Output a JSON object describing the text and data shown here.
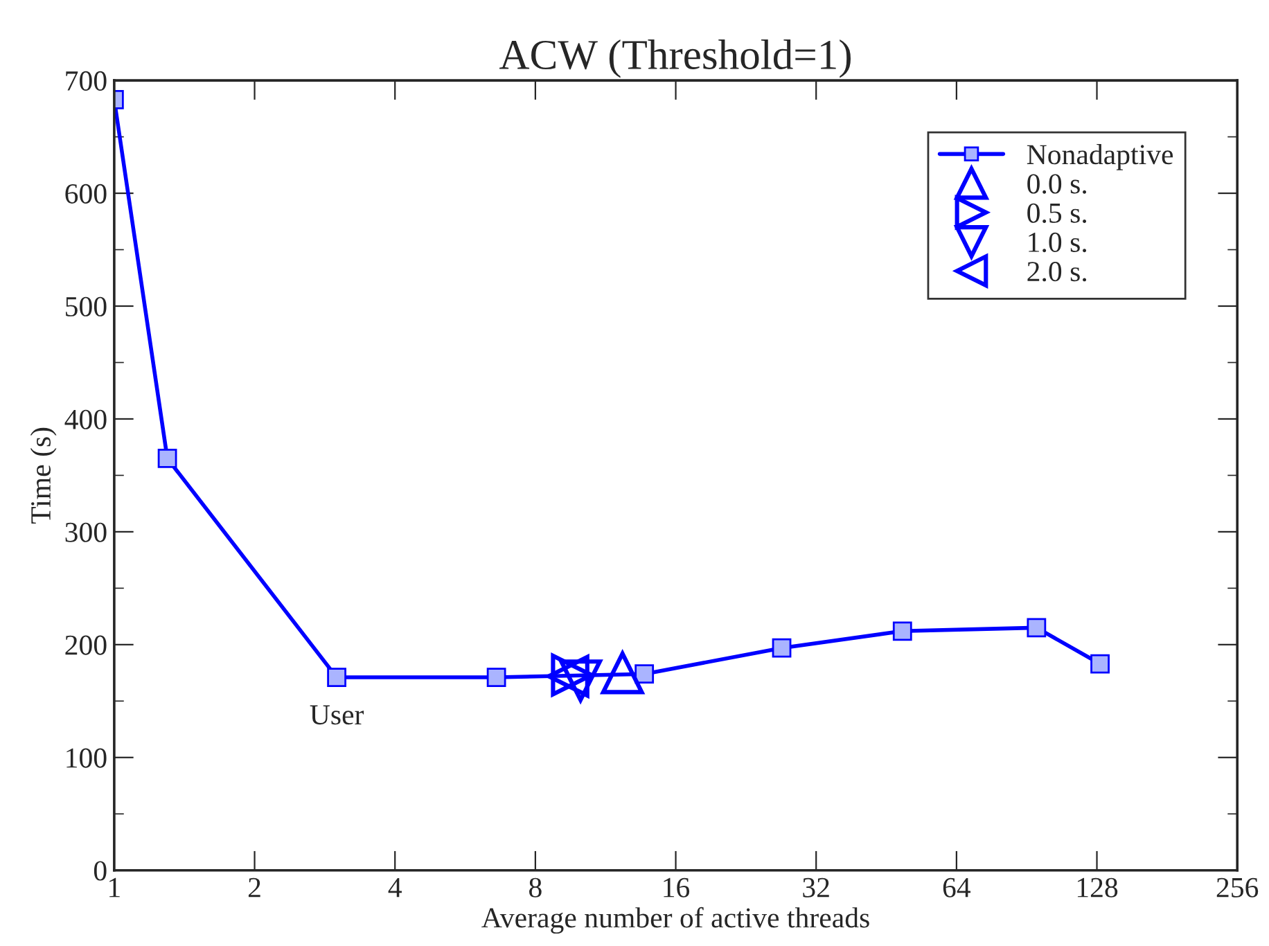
{
  "chart_data": {
    "type": "line",
    "title": "ACW (Threshold=1)",
    "xlabel": "Average number of active threads",
    "ylabel": "Time (s)",
    "log": "x",
    "xlim": [
      1,
      256
    ],
    "xticks": [
      1,
      2,
      4,
      8,
      16,
      32,
      64,
      128,
      256
    ],
    "ylim": [
      0,
      700
    ],
    "yticks": [
      0,
      100,
      200,
      300,
      400,
      500,
      600,
      700
    ],
    "grid": false,
    "legend": "top right",
    "annotations": [
      {
        "text": "User",
        "x": 3,
        "y": 171
      }
    ],
    "series": [
      {
        "name": "Nonadaptive",
        "color": "#0000ff",
        "marker": "square",
        "x": [
          1,
          1.3,
          3,
          6.6,
          13.7,
          27,
          49,
          95,
          130
        ],
        "values": [
          683,
          365,
          171,
          171,
          174,
          197,
          212,
          215,
          183
        ]
      },
      {
        "name": "0.0 s.",
        "color": "#0000ff",
        "type": "scatter",
        "marker": "triangle-up",
        "x": [
          12.3
        ],
        "values": [
          175
        ]
      },
      {
        "name": "0.5 s.",
        "color": "#0000ff",
        "type": "scatter",
        "marker": "triangle-right",
        "x": [
          9.6
        ],
        "values": [
          173
        ]
      },
      {
        "name": "1.0 s.",
        "color": "#0000ff",
        "type": "scatter",
        "marker": "triangle-down",
        "x": [
          10.0
        ],
        "values": [
          168
        ]
      },
      {
        "name": "2.0 s.",
        "color": "#0000ff",
        "type": "scatter",
        "marker": "triangle-left",
        "x": [
          9.4
        ],
        "values": [
          172
        ]
      }
    ]
  }
}
